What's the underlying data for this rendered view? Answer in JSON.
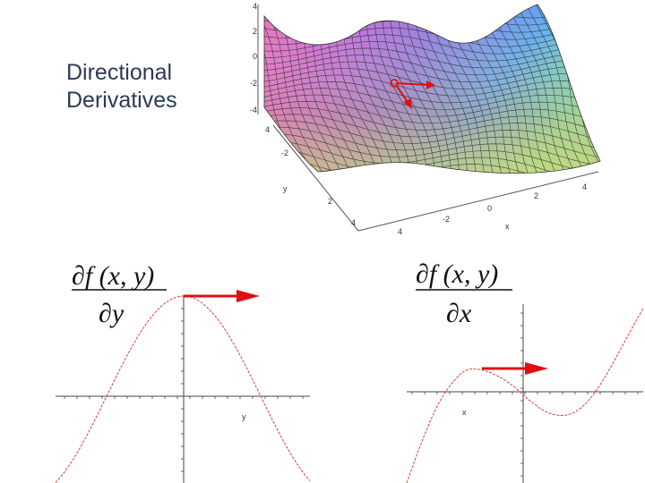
{
  "title": {
    "line1": "Directional",
    "line2": "Derivatives"
  },
  "surface_plot": {
    "z_ticks": [
      "4",
      "2",
      "0",
      "-2",
      "-4"
    ],
    "y_axis_label": "y",
    "y_ticks": [
      "4",
      "-2",
      "2"
    ],
    "x_axis_label": "x",
    "x_ticks": [
      "4",
      "2",
      "0",
      "-2",
      "4"
    ],
    "bottom_y_tick": "4",
    "colors": {
      "mesh": "#222222",
      "arrow": "#e01010"
    }
  },
  "partial_y_plot": {
    "numerator": "∂f (x, y)",
    "denominator": "∂y",
    "axis_label": "y",
    "curve_color": "#d84040",
    "arrow_color": "#e01010"
  },
  "partial_x_plot": {
    "numerator": "∂f (x, y)",
    "denominator": "∂x",
    "axis_label": "x",
    "curve_color": "#d84040",
    "arrow_color": "#e01010"
  }
}
